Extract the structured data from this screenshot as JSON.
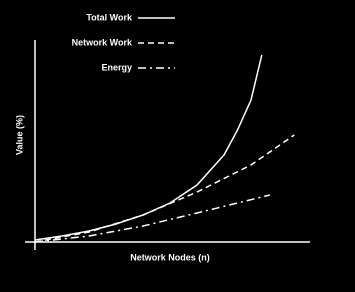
{
  "chart_data": {
    "type": "line",
    "x_label": "Network Nodes (n)",
    "y_label": "Value (%)",
    "xlim": [
      0,
      10
    ],
    "ylim": [
      0,
      100
    ],
    "series": [
      {
        "name": "Total Work",
        "color": "#ffffff",
        "style": "solid",
        "x": [
          0,
          1,
          2,
          3,
          4,
          5,
          6,
          7,
          7.5,
          8,
          8.4
        ],
        "values": [
          1,
          3,
          5.5,
          9,
          13.5,
          19.5,
          28.5,
          43.5,
          56,
          71,
          93.5
        ]
      },
      {
        "name": "Network Work",
        "color": "#ffffff",
        "style": "dashed",
        "x": [
          0,
          2,
          4,
          6,
          8,
          9.6
        ],
        "values": [
          0,
          5,
          13.5,
          25,
          38.5,
          53.5
        ]
      },
      {
        "name": "Energy",
        "color": "#ffffff",
        "style": "dashdot",
        "x": [
          0,
          2,
          4,
          6,
          8.7
        ],
        "values": [
          0,
          3,
          8,
          14.5,
          23.5
        ]
      }
    ]
  }
}
